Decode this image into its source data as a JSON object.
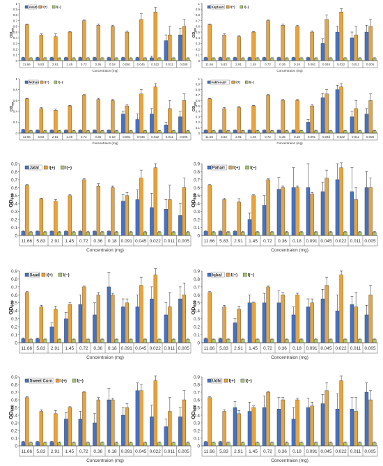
{
  "shared": {
    "categories": [
      "11.66",
      "5.83",
      "2.91",
      "1.45",
      "0.72",
      "0.36",
      "0.18",
      "0.091",
      "0.045",
      "0.022",
      "0.011",
      "0.005"
    ],
    "xlabel": "Concentraion (mg)",
    "ylabel_main": "OD",
    "ylabel_sub": "600",
    "legend_pos": "Ⅰ(+)",
    "legend_neg": "Ⅰ(−)",
    "colors": {
      "test": "#4472c4",
      "pos": "#e8a33c",
      "neg": "#a9c46c",
      "bar_edge": "#333333"
    }
  },
  "chart_data": [
    {
      "type": "bar",
      "title": "Avam",
      "ylim": [
        0,
        1
      ],
      "yticks": [
        "0",
        "0.1",
        "0.2",
        "0.3",
        "0.4",
        "0.5",
        "0.6",
        "0.7",
        "0.8",
        "0.9",
        "1"
      ],
      "series": [
        {
          "name": "Avam",
          "values": [
            0.05,
            0.05,
            0.05,
            0.05,
            0.05,
            0.05,
            0.05,
            0.05,
            0.05,
            0.05,
            0.35,
            0.45
          ],
          "errors": [
            0.01,
            0.01,
            0.01,
            0.01,
            0.01,
            0.01,
            0.01,
            0.01,
            0.01,
            0.03,
            0.1,
            0.12
          ]
        },
        {
          "name": "Ⅰ(+)",
          "values": [
            0.63,
            0.45,
            0.42,
            0.5,
            0.7,
            0.62,
            0.6,
            0.5,
            0.72,
            0.85,
            0.45,
            0.6
          ],
          "errors": [
            0.01,
            0.02,
            0.05,
            0.01,
            0.01,
            0.02,
            0.02,
            0.02,
            0.1,
            0.08,
            0.15,
            0.12
          ]
        },
        {
          "name": "Ⅰ(−)",
          "values": [
            0.04,
            0.04,
            0.04,
            0.04,
            0.04,
            0.04,
            0.04,
            0.04,
            0.04,
            0.04,
            0.04,
            0.04
          ],
          "errors": [
            0.01,
            0.01,
            0.01,
            0.01,
            0.01,
            0.01,
            0.01,
            0.01,
            0.01,
            0.01,
            0.01,
            0.01
          ]
        }
      ]
    },
    {
      "type": "bar",
      "title": "Kaptaan",
      "ylim": [
        0,
        1
      ],
      "yticks": [
        "0",
        "0.1",
        "0.2",
        "0.3",
        "0.4",
        "0.5",
        "0.6",
        "0.7",
        "0.8",
        "0.9",
        "1"
      ],
      "series": [
        {
          "name": "Kaptaan",
          "values": [
            0.05,
            0.05,
            0.05,
            0.05,
            0.05,
            0.05,
            0.05,
            0.05,
            0.3,
            0.5,
            0.4,
            0.5
          ],
          "errors": [
            0.01,
            0.01,
            0.01,
            0.01,
            0.01,
            0.01,
            0.01,
            0.01,
            0.08,
            0.1,
            0.1,
            0.12
          ]
        },
        {
          "name": "Ⅰ(+)",
          "values": [
            0.63,
            0.45,
            0.42,
            0.5,
            0.7,
            0.62,
            0.6,
            0.5,
            0.72,
            0.85,
            0.45,
            0.6
          ],
          "errors": [
            0.01,
            0.02,
            0.02,
            0.01,
            0.01,
            0.02,
            0.02,
            0.02,
            0.08,
            0.06,
            0.15,
            0.12
          ]
        },
        {
          "name": "Ⅰ(−)",
          "values": [
            0.04,
            0.04,
            0.04,
            0.04,
            0.04,
            0.04,
            0.04,
            0.04,
            0.04,
            0.04,
            0.04,
            0.04
          ],
          "errors": [
            0.01,
            0.01,
            0.01,
            0.01,
            0.01,
            0.01,
            0.01,
            0.01,
            0.01,
            0.01,
            0.01,
            0.01
          ]
        }
      ]
    },
    {
      "type": "bar",
      "title": "Mohan",
      "ylim": [
        0,
        1
      ],
      "yticks": [
        "0",
        "0.2",
        "0.4",
        "0.6",
        "0.8",
        "1"
      ],
      "series": [
        {
          "name": "Mohan",
          "values": [
            0.06,
            0.05,
            0.05,
            0.05,
            0.05,
            0.05,
            0.05,
            0.35,
            0.25,
            0.35,
            0.15,
            0.3
          ],
          "errors": [
            0.01,
            0.01,
            0.01,
            0.01,
            0.01,
            0.01,
            0.01,
            0.05,
            0.1,
            0.1,
            0.05,
            0.1
          ]
        },
        {
          "name": "Ⅰ(+)",
          "values": [
            0.63,
            0.45,
            0.42,
            0.5,
            0.7,
            0.62,
            0.6,
            0.5,
            0.72,
            0.85,
            0.45,
            0.6
          ],
          "errors": [
            0.01,
            0.02,
            0.02,
            0.01,
            0.01,
            0.02,
            0.02,
            0.02,
            0.08,
            0.06,
            0.15,
            0.12
          ]
        },
        {
          "name": "Ⅰ(−)",
          "values": [
            0.04,
            0.04,
            0.04,
            0.04,
            0.04,
            0.04,
            0.04,
            0.04,
            0.04,
            0.04,
            0.04,
            0.04
          ],
          "errors": [
            0.01,
            0.01,
            0.01,
            0.01,
            0.01,
            0.01,
            0.01,
            0.01,
            0.01,
            0.01,
            0.01,
            0.01
          ]
        }
      ]
    },
    {
      "type": "bar",
      "title": "Fakh-e-jol",
      "ylim": [
        0,
        1
      ],
      "yticks": [
        "0",
        "0.1",
        "0.2",
        "0.3",
        "0.4",
        "0.5",
        "0.6",
        "0.7",
        "0.8",
        "0.9",
        "1"
      ],
      "series": [
        {
          "name": "Fakh-e-jol",
          "values": [
            0.05,
            0.05,
            0.05,
            0.05,
            0.05,
            0.05,
            0.05,
            0.2,
            0.65,
            0.8,
            0.3,
            0.35
          ],
          "errors": [
            0.01,
            0.01,
            0.01,
            0.01,
            0.01,
            0.01,
            0.01,
            0.05,
            0.08,
            0.08,
            0.1,
            0.1
          ]
        },
        {
          "name": "Ⅰ(+)",
          "values": [
            0.63,
            0.45,
            0.47,
            0.5,
            0.7,
            0.6,
            0.6,
            0.5,
            0.72,
            0.85,
            0.45,
            0.6
          ],
          "errors": [
            0.01,
            0.02,
            0.02,
            0.01,
            0.01,
            0.02,
            0.02,
            0.02,
            0.08,
            0.06,
            0.15,
            0.12
          ]
        },
        {
          "name": "Ⅰ(−)",
          "values": [
            0.04,
            0.04,
            0.04,
            0.04,
            0.04,
            0.04,
            0.04,
            0.04,
            0.04,
            0.04,
            0.04,
            0.04
          ],
          "errors": [
            0.01,
            0.01,
            0.01,
            0.01,
            0.01,
            0.01,
            0.01,
            0.01,
            0.01,
            0.01,
            0.01,
            0.01
          ]
        }
      ]
    },
    {
      "type": "bar",
      "title": "Jalal",
      "ylim": [
        0,
        0.9
      ],
      "yticks": [
        "0",
        "0.1",
        "0.2",
        "0.3",
        "0.4",
        "0.5",
        "0.6",
        "0.7",
        "0.8",
        "0.9"
      ],
      "series": [
        {
          "name": "Jalal",
          "values": [
            0.05,
            0.05,
            0.05,
            0.05,
            0.05,
            0.05,
            0.05,
            0.43,
            0.45,
            0.35,
            0.33,
            0.25
          ],
          "errors": [
            0.01,
            0.01,
            0.01,
            0.01,
            0.01,
            0.01,
            0.01,
            0.08,
            0.12,
            0.18,
            0.12,
            0.15
          ]
        },
        {
          "name": "Ⅰ(+)",
          "values": [
            0.63,
            0.46,
            0.43,
            0.5,
            0.7,
            0.62,
            0.6,
            0.5,
            0.72,
            0.85,
            0.45,
            0.6
          ],
          "errors": [
            0.01,
            0.01,
            0.02,
            0.01,
            0.01,
            0.03,
            0.02,
            0.04,
            0.1,
            0.05,
            0.18,
            0.12
          ]
        },
        {
          "name": "Ⅰ(−)",
          "values": [
            0.04,
            0.04,
            0.04,
            0.04,
            0.04,
            0.04,
            0.04,
            0.04,
            0.04,
            0.04,
            0.04,
            0.04
          ],
          "errors": [
            0.01,
            0.01,
            0.01,
            0.01,
            0.01,
            0.01,
            0.01,
            0.01,
            0.01,
            0.01,
            0.01,
            0.01
          ]
        }
      ]
    },
    {
      "type": "bar",
      "title": "Pahari",
      "ylim": [
        0,
        0.9
      ],
      "yticks": [
        "0",
        "0.1",
        "0.2",
        "0.3",
        "0.4",
        "0.5",
        "0.6",
        "0.7",
        "0.8",
        "0.9"
      ],
      "series": [
        {
          "name": "Pahari",
          "values": [
            0.05,
            0.05,
            0.05,
            0.2,
            0.38,
            0.58,
            0.6,
            0.6,
            0.55,
            0.7,
            0.55,
            0.6
          ],
          "errors": [
            0.01,
            0.01,
            0.01,
            0.08,
            0.12,
            0.15,
            0.25,
            0.3,
            0.12,
            0.2,
            0.3,
            0.2
          ]
        },
        {
          "name": "Ⅰ(+)",
          "values": [
            0.63,
            0.45,
            0.42,
            0.5,
            0.7,
            0.6,
            0.6,
            0.52,
            0.72,
            0.85,
            0.45,
            0.6
          ],
          "errors": [
            0.01,
            0.02,
            0.04,
            0.01,
            0.01,
            0.02,
            0.02,
            0.02,
            0.1,
            0.06,
            0.15,
            0.12
          ]
        },
        {
          "name": "Ⅰ(−)",
          "values": [
            0.04,
            0.04,
            0.04,
            0.04,
            0.04,
            0.04,
            0.04,
            0.04,
            0.04,
            0.04,
            0.04,
            0.04
          ],
          "errors": [
            0.01,
            0.01,
            0.01,
            0.01,
            0.01,
            0.01,
            0.01,
            0.01,
            0.01,
            0.01,
            0.01,
            0.01
          ]
        }
      ]
    },
    {
      "type": "bar",
      "title": "Saad",
      "ylim": [
        0,
        0.9
      ],
      "yticks": [
        "0",
        "0.1",
        "0.2",
        "0.3",
        "0.4",
        "0.5",
        "0.6",
        "0.7",
        "0.8",
        "0.9"
      ],
      "series": [
        {
          "name": "Saad",
          "values": [
            0.05,
            0.05,
            0.2,
            0.3,
            0.48,
            0.35,
            0.7,
            0.45,
            0.45,
            0.55,
            0.35,
            0.55
          ],
          "errors": [
            0.01,
            0.01,
            0.05,
            0.08,
            0.12,
            0.15,
            0.18,
            0.1,
            0.15,
            0.15,
            0.15,
            0.15
          ]
        },
        {
          "name": "Ⅰ(+)",
          "values": [
            0.63,
            0.45,
            0.42,
            0.48,
            0.7,
            0.6,
            0.6,
            0.5,
            0.72,
            0.85,
            0.45,
            0.6
          ],
          "errors": [
            0.01,
            0.02,
            0.04,
            0.02,
            0.01,
            0.03,
            0.02,
            0.05,
            0.1,
            0.08,
            0.18,
            0.15
          ]
        },
        {
          "name": "Ⅰ(−)",
          "values": [
            0.04,
            0.04,
            0.04,
            0.04,
            0.04,
            0.04,
            0.04,
            0.04,
            0.04,
            0.04,
            0.04,
            0.04
          ],
          "errors": [
            0.01,
            0.01,
            0.01,
            0.01,
            0.01,
            0.01,
            0.01,
            0.01,
            0.01,
            0.01,
            0.01,
            0.01
          ]
        }
      ]
    },
    {
      "type": "bar",
      "title": "Iqbal",
      "ylim": [
        0,
        0.9
      ],
      "yticks": [
        "0",
        "0.1",
        "0.2",
        "0.3",
        "0.4",
        "0.5",
        "0.6",
        "0.7",
        "0.8",
        "0.9"
      ],
      "series": [
        {
          "name": "Iqbal",
          "values": [
            0.05,
            0.05,
            0.25,
            0.5,
            0.5,
            0.5,
            0.35,
            0.45,
            0.55,
            0.4,
            0.48,
            0.35
          ],
          "errors": [
            0.01,
            0.01,
            0.05,
            0.1,
            0.12,
            0.15,
            0.1,
            0.1,
            0.12,
            0.2,
            0.1,
            0.12
          ]
        },
        {
          "name": "Ⅰ(+)",
          "values": [
            0.63,
            0.45,
            0.42,
            0.5,
            0.7,
            0.6,
            0.6,
            0.5,
            0.72,
            0.85,
            0.45,
            0.6
          ],
          "errors": [
            0.01,
            0.02,
            0.04,
            0.01,
            0.01,
            0.03,
            0.02,
            0.05,
            0.1,
            0.05,
            0.18,
            0.12
          ]
        },
        {
          "name": "Ⅰ(−)",
          "values": [
            0.04,
            0.04,
            0.04,
            0.04,
            0.04,
            0.04,
            0.04,
            0.04,
            0.04,
            0.04,
            0.04,
            0.04
          ],
          "errors": [
            0.01,
            0.01,
            0.01,
            0.01,
            0.01,
            0.01,
            0.01,
            0.01,
            0.01,
            0.01,
            0.01,
            0.01
          ]
        }
      ]
    },
    {
      "type": "bar",
      "title": "Sweet Corn",
      "ylim": [
        0,
        0.9
      ],
      "yticks": [
        "0",
        "0.1",
        "0.2",
        "0.3",
        "0.4",
        "0.5",
        "0.6",
        "0.7",
        "0.8",
        "0.9"
      ],
      "series": [
        {
          "name": "Sweet Corn",
          "values": [
            0.05,
            0.05,
            0.05,
            0.35,
            0.35,
            0.3,
            0.6,
            0.4,
            0.72,
            0.38,
            0.25,
            0.38
          ],
          "errors": [
            0.01,
            0.01,
            0.01,
            0.08,
            0.1,
            0.12,
            0.15,
            0.1,
            0.1,
            0.15,
            0.1,
            0.12
          ]
        },
        {
          "name": "Ⅰ(+)",
          "values": [
            0.63,
            0.45,
            0.42,
            0.5,
            0.7,
            0.6,
            0.6,
            0.5,
            0.72,
            0.85,
            0.45,
            0.6
          ],
          "errors": [
            0.01,
            0.02,
            0.04,
            0.01,
            0.01,
            0.03,
            0.02,
            0.05,
            0.08,
            0.06,
            0.18,
            0.12
          ]
        },
        {
          "name": "Ⅰ(−)",
          "values": [
            0.04,
            0.04,
            0.04,
            0.04,
            0.04,
            0.04,
            0.04,
            0.04,
            0.04,
            0.04,
            0.04,
            0.04
          ],
          "errors": [
            0.01,
            0.01,
            0.01,
            0.01,
            0.01,
            0.01,
            0.01,
            0.01,
            0.01,
            0.01,
            0.01,
            0.01
          ]
        }
      ]
    },
    {
      "type": "bar",
      "title": "Udhi",
      "ylim": [
        0,
        0.9
      ],
      "yticks": [
        "0",
        "0.1",
        "0.2",
        "0.3",
        "0.4",
        "0.5",
        "0.6",
        "0.7",
        "0.8",
        "0.9"
      ],
      "series": [
        {
          "name": "Udhi",
          "values": [
            0.05,
            0.05,
            0.5,
            0.45,
            0.5,
            0.48,
            0.35,
            0.5,
            0.55,
            0.48,
            0.48,
            0.7
          ],
          "errors": [
            0.01,
            0.01,
            0.08,
            0.12,
            0.15,
            0.15,
            0.15,
            0.12,
            0.12,
            0.2,
            0.15,
            0.12
          ]
        },
        {
          "name": "Ⅰ(+)",
          "values": [
            0.63,
            0.45,
            0.42,
            0.5,
            0.7,
            0.6,
            0.6,
            0.52,
            0.72,
            0.85,
            0.45,
            0.6
          ],
          "errors": [
            0.01,
            0.02,
            0.04,
            0.02,
            0.01,
            0.03,
            0.02,
            0.05,
            0.1,
            0.06,
            0.18,
            0.12
          ]
        },
        {
          "name": "Ⅰ(−)",
          "values": [
            0.04,
            0.04,
            0.04,
            0.04,
            0.04,
            0.04,
            0.04,
            0.04,
            0.04,
            0.04,
            0.04,
            0.04
          ],
          "errors": [
            0.01,
            0.01,
            0.01,
            0.01,
            0.01,
            0.01,
            0.01,
            0.01,
            0.01,
            0.01,
            0.01,
            0.01
          ]
        }
      ]
    }
  ]
}
